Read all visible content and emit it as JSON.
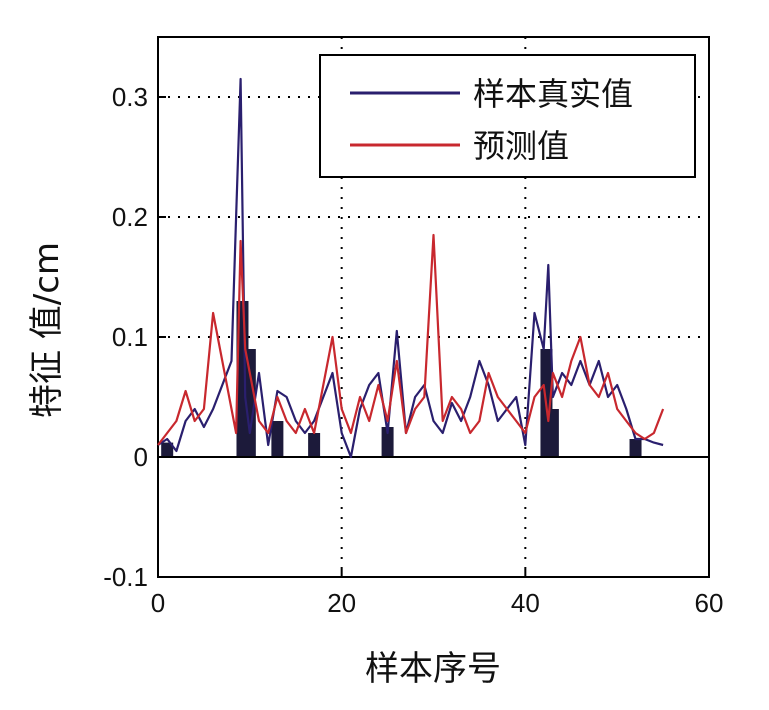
{
  "chart_data": {
    "type": "line",
    "title": "",
    "xlabel": "样本序号",
    "ylabel": "特征 值/cm",
    "xlim": [
      0,
      60
    ],
    "ylim": [
      -0.1,
      0.35
    ],
    "xticks": [
      0,
      20,
      40,
      60
    ],
    "xtick_labels": [
      "0",
      "20",
      "40",
      "60"
    ],
    "yticks": [
      -0.1,
      0,
      0.1,
      0.2,
      0.3
    ],
    "ytick_labels": [
      "-0.1",
      "0",
      "0.1",
      "0.2",
      "0.3"
    ],
    "grid": true,
    "legend_position": "top-right",
    "series": [
      {
        "name": "样本真实值",
        "color": "#2a1f6e",
        "x": [
          0,
          1,
          2,
          3,
          4,
          5,
          6,
          7,
          8,
          8.5,
          9,
          9.5,
          10,
          11,
          12,
          13,
          14,
          15,
          16,
          17,
          18,
          19,
          20,
          21,
          22,
          23,
          24,
          25,
          26,
          27,
          28,
          29,
          30,
          31,
          32,
          33,
          34,
          35,
          36,
          37,
          38,
          39,
          40,
          41,
          42,
          42.5,
          43,
          44,
          45,
          46,
          47,
          48,
          49,
          50,
          51,
          52,
          53,
          54,
          55
        ],
        "y": [
          0.01,
          0.015,
          0.005,
          0.03,
          0.04,
          0.025,
          0.04,
          0.06,
          0.08,
          0.2,
          0.315,
          0.05,
          0.02,
          0.07,
          0.01,
          0.055,
          0.05,
          0.03,
          0.02,
          0.03,
          0.05,
          0.07,
          0.02,
          0.0,
          0.04,
          0.06,
          0.07,
          0.02,
          0.105,
          0.02,
          0.05,
          0.06,
          0.03,
          0.02,
          0.045,
          0.03,
          0.05,
          0.08,
          0.06,
          0.03,
          0.04,
          0.05,
          0.01,
          0.12,
          0.09,
          0.16,
          0.05,
          0.07,
          0.06,
          0.08,
          0.06,
          0.08,
          0.05,
          0.06,
          0.04,
          0.015,
          0.015,
          0.012,
          0.01
        ]
      },
      {
        "name": "预测值",
        "color": "#c8282e",
        "x": [
          0,
          1,
          2,
          3,
          4,
          5,
          6,
          7,
          8,
          8.5,
          9,
          9.5,
          10,
          11,
          12,
          13,
          14,
          15,
          16,
          17,
          18,
          19,
          20,
          21,
          22,
          23,
          24,
          25,
          26,
          27,
          28,
          29,
          30,
          31,
          32,
          33,
          34,
          35,
          36,
          37,
          38,
          39,
          40,
          41,
          42,
          42.5,
          43,
          44,
          45,
          46,
          47,
          48,
          49,
          50,
          51,
          52,
          53,
          54,
          55
        ],
        "y": [
          0.01,
          0.02,
          0.03,
          0.055,
          0.03,
          0.04,
          0.12,
          0.08,
          0.04,
          0.02,
          0.18,
          0.09,
          0.07,
          0.03,
          0.02,
          0.05,
          0.03,
          0.02,
          0.04,
          0.02,
          0.06,
          0.1,
          0.04,
          0.02,
          0.05,
          0.03,
          0.06,
          0.03,
          0.08,
          0.02,
          0.04,
          0.05,
          0.185,
          0.03,
          0.05,
          0.04,
          0.02,
          0.03,
          0.07,
          0.05,
          0.04,
          0.03,
          0.02,
          0.05,
          0.06,
          0.03,
          0.07,
          0.05,
          0.08,
          0.1,
          0.06,
          0.05,
          0.07,
          0.04,
          0.03,
          0.02,
          0.015,
          0.02,
          0.04
        ]
      }
    ],
    "annotations": "dark filled stems near x=1, 9–10, 13, 17, 25, 42–43, 52"
  }
}
